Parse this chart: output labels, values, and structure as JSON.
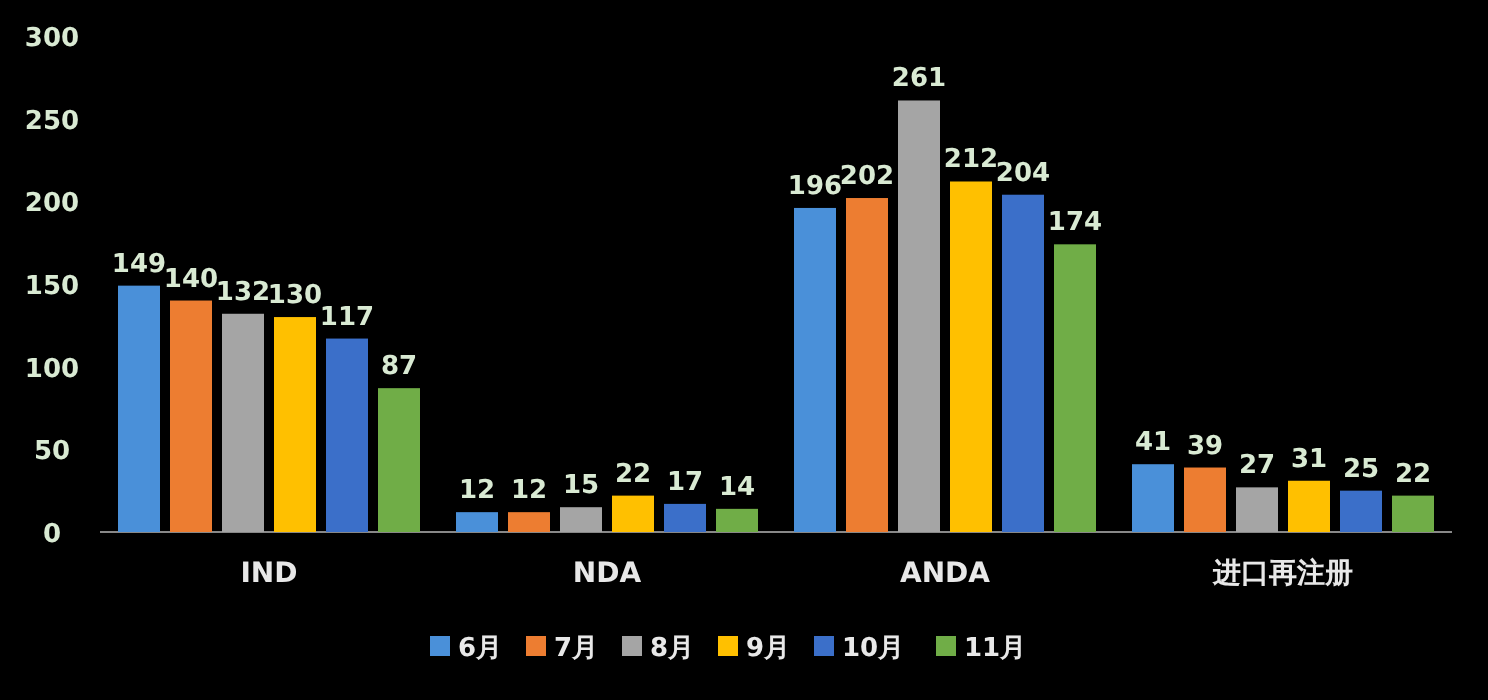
{
  "chart_data": {
    "type": "bar",
    "categories": [
      "IND",
      "NDA",
      "ANDA",
      "进口再注册"
    ],
    "series": [
      {
        "name": "6月",
        "color": "#4a90d9",
        "values": [
          149,
          12,
          196,
          41
        ]
      },
      {
        "name": "7月",
        "color": "#ed7d31",
        "values": [
          140,
          12,
          202,
          39
        ]
      },
      {
        "name": "8月",
        "color": "#a5a5a5",
        "values": [
          132,
          15,
          261,
          27
        ]
      },
      {
        "name": "9月",
        "color": "#ffc000",
        "values": [
          130,
          22,
          212,
          31
        ]
      },
      {
        "name": "10月",
        "color": "#3b6fc9",
        "values": [
          117,
          17,
          204,
          25
        ]
      },
      {
        "name": "11月",
        "color": "#70ad47",
        "values": [
          87,
          14,
          174,
          22
        ]
      }
    ],
    "ylim": [
      0,
      300
    ],
    "yticks": [
      0,
      50,
      100,
      150,
      200,
      250,
      300
    ],
    "grid": false,
    "data_labels": true,
    "legend": "bottom"
  }
}
